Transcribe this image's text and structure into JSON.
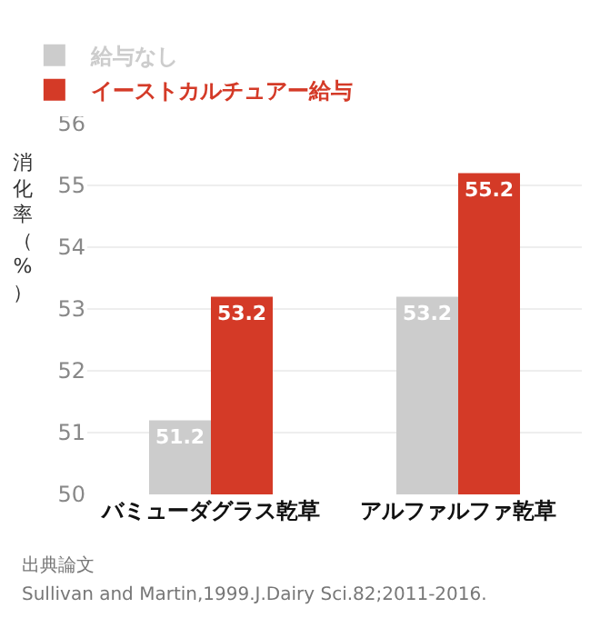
{
  "chart_data": {
    "type": "bar",
    "ylabel": "消化率（%）",
    "categories": [
      "バミューダグラス乾草",
      "アルファルファ乾草"
    ],
    "series": [
      {
        "name": "給与なし",
        "color": "#cccccc",
        "values": [
          51.2,
          53.2
        ]
      },
      {
        "name": "イーストカルチュアー給与",
        "color": "#d43a27",
        "values": [
          53.2,
          55.2
        ]
      }
    ],
    "ylim": [
      50,
      56
    ],
    "yticks": [
      50,
      51,
      52,
      53,
      54,
      55,
      56
    ],
    "grid": "y",
    "legend": "top left",
    "data_labels": true,
    "annotations": [
      "出典論文",
      "Sullivan and Martin,1999.J.Dairy Sci.82;2011-2016."
    ]
  }
}
